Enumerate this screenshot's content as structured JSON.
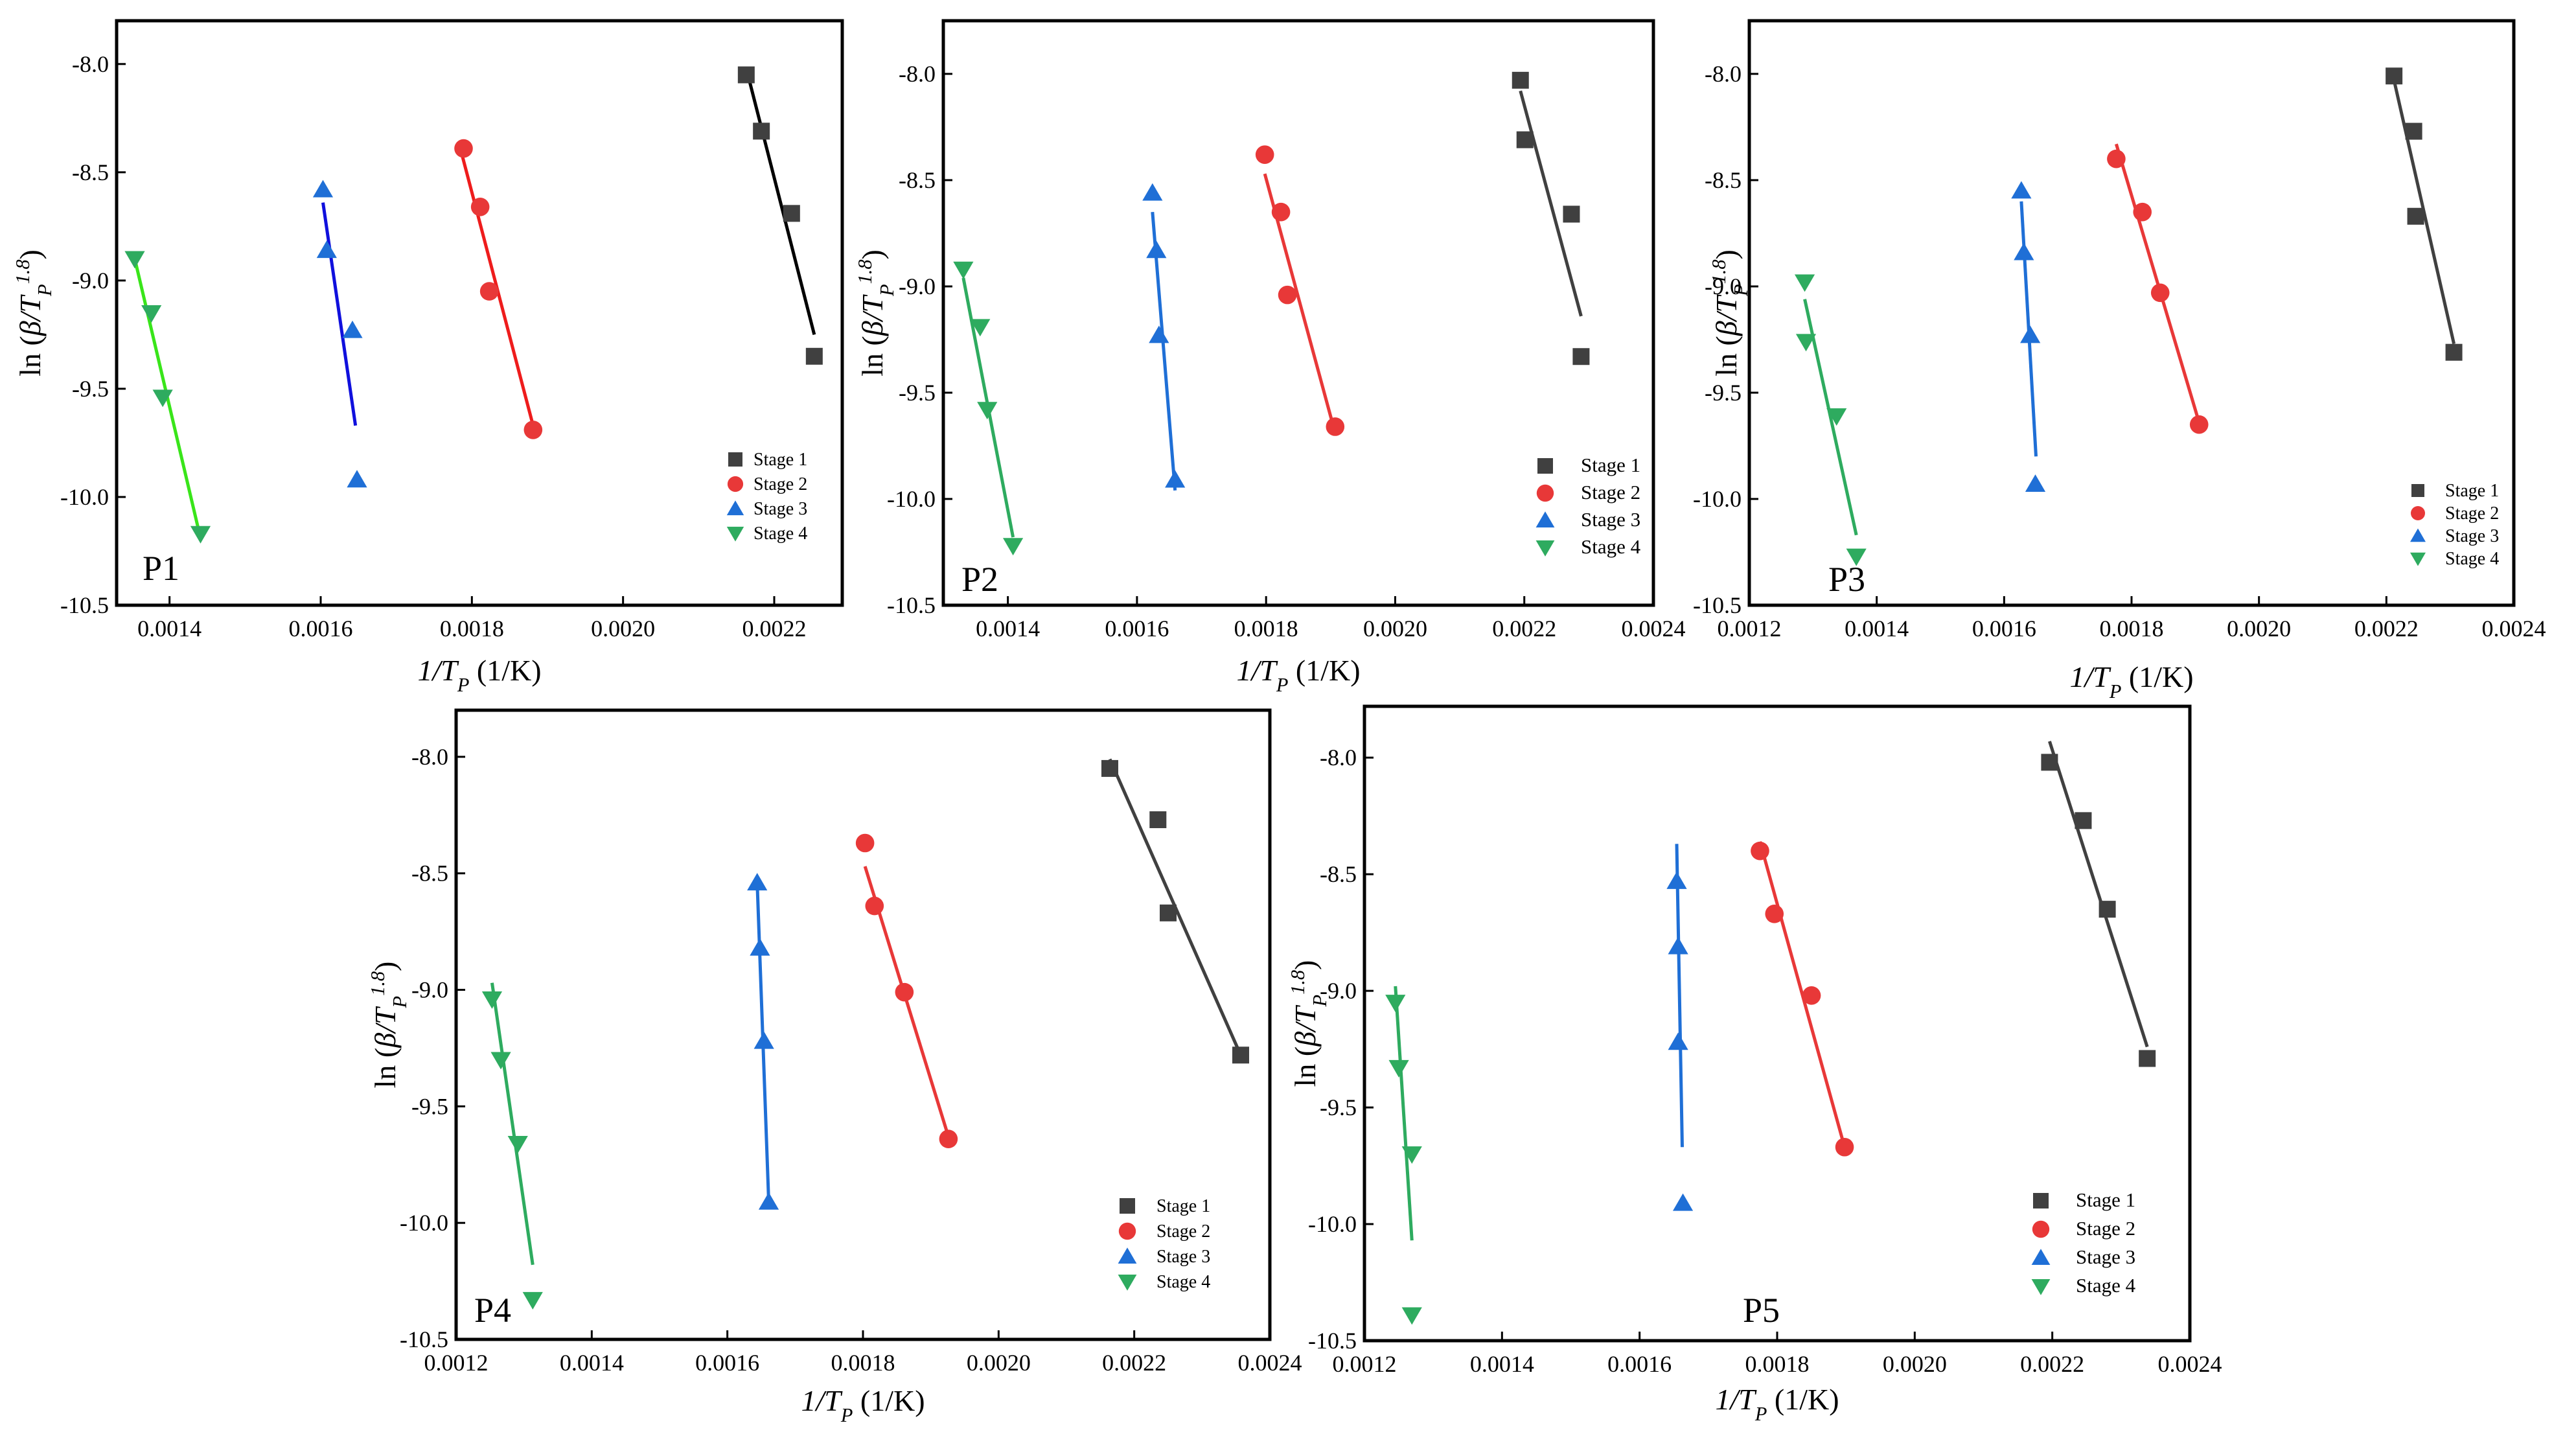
{
  "colors": {
    "Stage 1": "#404040",
    "Stage 2": "#e83838",
    "Stage 3": "#1f6fd6",
    "Stage 4": "#2eab5f"
  },
  "fit_colors": {
    "P1": {
      "Stage 1": "#000000",
      "Stage 2": "#ee1c1c",
      "Stage 3": "#1010dd",
      "Stage 4": "#39e51a"
    }
  },
  "legend_labels": [
    "Stage 1",
    "Stage 2",
    "Stage 3",
    "Stage 4"
  ],
  "chart_data": [
    {
      "type": "scatter",
      "panel": "P1",
      "xlabel": "1/T_P (1/K)",
      "ylabel": "ln (β/T_P^1.8)",
      "xlim": [
        0.00133,
        0.00229
      ],
      "ylim": [
        -10.5,
        -7.8
      ],
      "xticks": [
        0.0014,
        0.0016,
        0.0018,
        0.002,
        0.0022
      ],
      "xtick_labels": [
        "0.0014",
        "0.0016",
        "0.0018",
        "0.0020",
        "0.0022"
      ],
      "yticks": [
        -10.5,
        -10.0,
        -9.5,
        -9.0,
        -8.5,
        -8.0
      ],
      "ytick_labels": [
        "-10.5",
        "-10.0",
        "-9.5",
        "-9.0",
        "-8.5",
        "-8.0"
      ],
      "series": [
        {
          "name": "Stage 1",
          "marker": "square",
          "x": [
            0.002163,
            0.002183,
            0.002223,
            0.002253
          ],
          "y": [
            -8.05,
            -8.31,
            -8.69,
            -9.35
          ],
          "fit_x": [
            0.002163,
            0.002253
          ],
          "fit_y": [
            -8.02,
            -9.25
          ]
        },
        {
          "name": "Stage 2",
          "marker": "circle",
          "x": [
            0.001789,
            0.001811,
            0.001823,
            0.001881
          ],
          "y": [
            -8.39,
            -8.66,
            -9.05,
            -9.69
          ],
          "fit_x": [
            0.001784,
            0.001881
          ],
          "fit_y": [
            -8.38,
            -9.67
          ]
        },
        {
          "name": "Stage 3",
          "marker": "triangle-up",
          "x": [
            0.001603,
            0.001608,
            0.001642,
            0.001648
          ],
          "y": [
            -8.58,
            -8.86,
            -9.23,
            -9.92
          ],
          "fit_x": [
            0.001603,
            0.001646
          ],
          "fit_y": [
            -8.64,
            -9.67
          ]
        },
        {
          "name": "Stage 4",
          "marker": "triangle-down",
          "x": [
            0.001354,
            0.001376,
            0.001391,
            0.001441
          ],
          "y": [
            -8.9,
            -9.15,
            -9.54,
            -10.17
          ],
          "fit_x": [
            0.001354,
            0.001441
          ],
          "fit_y": [
            -8.9,
            -10.19
          ]
        }
      ]
    },
    {
      "type": "scatter",
      "panel": "P2",
      "xlabel": "1/T_P (1/K)",
      "ylabel": "ln (β/T_P^1.8)",
      "xlim": [
        0.0013,
        0.0024
      ],
      "ylim": [
        -10.5,
        -7.75
      ],
      "xticks": [
        0.0014,
        0.0016,
        0.0018,
        0.002,
        0.0022,
        0.0024
      ],
      "xtick_labels": [
        "0.0014",
        "0.0016",
        "0.0018",
        "0.0020",
        "0.0022",
        "0.0024"
      ],
      "yticks": [
        -10.5,
        -10.0,
        -9.5,
        -9.0,
        -8.5,
        -8.0
      ],
      "ytick_labels": [
        "-10.5",
        "-10.0",
        "-9.5",
        "-9.0",
        "-8.5",
        "-8.0"
      ],
      "series": [
        {
          "name": "Stage 1",
          "marker": "square",
          "x": [
            0.002194,
            0.002201,
            0.002273,
            0.002288
          ],
          "y": [
            -8.03,
            -8.31,
            -8.66,
            -9.33
          ],
          "fit_x": [
            0.002194,
            0.002288
          ],
          "fit_y": [
            -8.08,
            -9.14
          ]
        },
        {
          "name": "Stage 2",
          "marker": "circle",
          "x": [
            0.001798,
            0.001823,
            0.001833,
            0.001907
          ],
          "y": [
            -8.38,
            -8.65,
            -9.04,
            -9.66
          ],
          "fit_x": [
            0.001798,
            0.001907
          ],
          "fit_y": [
            -8.47,
            -9.69
          ]
        },
        {
          "name": "Stage 3",
          "marker": "triangle-up",
          "x": [
            0.001624,
            0.00163,
            0.001634,
            0.001659
          ],
          "y": [
            -8.56,
            -8.83,
            -9.23,
            -9.91
          ],
          "fit_x": [
            0.001624,
            0.001659
          ],
          "fit_y": [
            -8.65,
            -9.96
          ]
        },
        {
          "name": "Stage 4",
          "marker": "triangle-down",
          "x": [
            0.001331,
            0.001357,
            0.001368,
            0.001408
          ],
          "y": [
            -8.92,
            -9.19,
            -9.58,
            -10.22
          ],
          "fit_x": [
            0.001331,
            0.001408
          ],
          "fit_y": [
            -8.96,
            -10.18
          ]
        }
      ]
    },
    {
      "type": "scatter",
      "panel": "P3",
      "xlabel": "1/T_P (1/K)",
      "ylabel": "ln (β/T_P^1.8)",
      "xlim": [
        0.0012,
        0.0024
      ],
      "ylim": [
        -10.5,
        -7.75
      ],
      "xticks": [
        0.0012,
        0.0014,
        0.0016,
        0.0018,
        0.002,
        0.0022,
        0.0024
      ],
      "xtick_labels": [
        "0.0012",
        "0.0014",
        "0.0016",
        "0.0018",
        "0.0020",
        "0.0022",
        "0.0024"
      ],
      "yticks": [
        -10.5,
        -10.0,
        -9.5,
        -9.0,
        -8.5,
        -8.0
      ],
      "ytick_labels": [
        "-10.5",
        "-10.0",
        "-9.5",
        "-9.0",
        "-8.5",
        "-8.0"
      ],
      "series": [
        {
          "name": "Stage 1",
          "marker": "square",
          "x": [
            0.002212,
            0.002243,
            0.002246,
            0.002306
          ],
          "y": [
            -8.01,
            -8.27,
            -8.67,
            -9.31
          ],
          "fit_x": [
            0.002212,
            0.002306
          ],
          "fit_y": [
            -8.03,
            -9.27
          ]
        },
        {
          "name": "Stage 2",
          "marker": "circle",
          "x": [
            0.001776,
            0.001817,
            0.001845,
            0.001906
          ],
          "y": [
            -8.4,
            -8.65,
            -9.03,
            -9.65
          ],
          "fit_x": [
            0.001776,
            0.001906
          ],
          "fit_y": [
            -8.33,
            -9.64
          ]
        },
        {
          "name": "Stage 3",
          "marker": "triangle-up",
          "x": [
            0.001627,
            0.001631,
            0.001641,
            0.001649
          ],
          "y": [
            -8.55,
            -8.84,
            -9.23,
            -9.93
          ],
          "fit_x": [
            0.001627,
            0.00165
          ],
          "fit_y": [
            -8.6,
            -9.8
          ]
        },
        {
          "name": "Stage 4",
          "marker": "triangle-down",
          "x": [
            0.001287,
            0.001289,
            0.001337,
            0.001368
          ],
          "y": [
            -8.98,
            -9.26,
            -9.61,
            -10.27
          ],
          "fit_x": [
            0.001287,
            0.001368
          ],
          "fit_y": [
            -9.06,
            -10.17
          ]
        }
      ]
    },
    {
      "type": "scatter",
      "panel": "P4",
      "xlabel": "1/T_P (1/K)",
      "ylabel": "ln (β/T_P^1.8)",
      "xlim": [
        0.0012,
        0.0024
      ],
      "ylim": [
        -10.5,
        -7.8
      ],
      "xticks": [
        0.0012,
        0.0014,
        0.0016,
        0.0018,
        0.002,
        0.0022,
        0.0024
      ],
      "xtick_labels": [
        "0.0012",
        "0.0014",
        "0.0016",
        "0.0018",
        "0.0020",
        "0.0022",
        "0.0024"
      ],
      "yticks": [
        -10.5,
        -10.0,
        -9.5,
        -9.0,
        -8.5,
        -8.0
      ],
      "ytick_labels": [
        "-10.5",
        "-10.0",
        "-9.5",
        "-9.0",
        "-8.5",
        "-8.0"
      ],
      "series": [
        {
          "name": "Stage 1",
          "marker": "square",
          "x": [
            0.002164,
            0.002235,
            0.00225,
            0.002357
          ],
          "y": [
            -8.05,
            -8.27,
            -8.67,
            -9.28
          ],
          "fit_x": [
            0.002164,
            0.002357
          ],
          "fit_y": [
            -8.01,
            -9.28
          ]
        },
        {
          "name": "Stage 2",
          "marker": "circle",
          "x": [
            0.001803,
            0.001817,
            0.001861,
            0.001926
          ],
          "y": [
            -8.37,
            -8.64,
            -9.01,
            -9.64
          ],
          "fit_x": [
            0.001803,
            0.001926
          ],
          "fit_y": [
            -8.47,
            -9.63
          ]
        },
        {
          "name": "Stage 3",
          "marker": "triangle-up",
          "x": [
            0.001644,
            0.001648,
            0.001654,
            0.001661
          ],
          "y": [
            -8.54,
            -8.82,
            -9.22,
            -9.91
          ],
          "fit_x": [
            0.001644,
            0.001661
          ],
          "fit_y": [
            -8.54,
            -9.91
          ]
        },
        {
          "name": "Stage 4",
          "marker": "triangle-down",
          "x": [
            0.001253,
            0.001266,
            0.001291,
            0.001313
          ],
          "y": [
            -9.04,
            -9.3,
            -9.66,
            -10.33
          ],
          "fit_x": [
            0.001253,
            0.001313
          ],
          "fit_y": [
            -8.97,
            -10.18
          ]
        }
      ]
    },
    {
      "type": "scatter",
      "panel": "P5",
      "xlabel": "1/T_P (1/K)",
      "ylabel": "ln (β/T_P^1.8)",
      "xlim": [
        0.0012,
        0.0024
      ],
      "ylim": [
        -10.5,
        -7.78
      ],
      "xticks": [
        0.0012,
        0.0014,
        0.0016,
        0.0018,
        0.002,
        0.0022,
        0.0024
      ],
      "xtick_labels": [
        "0.0012",
        "0.0014",
        "0.0016",
        "0.0018",
        "0.0020",
        "0.0022",
        "0.0024"
      ],
      "yticks": [
        -10.5,
        -10.0,
        -9.5,
        -9.0,
        -8.5,
        -8.0
      ],
      "ytick_labels": [
        "-10.5",
        "-10.0",
        "-9.5",
        "-9.0",
        "-8.5",
        "-8.0"
      ],
      "series": [
        {
          "name": "Stage 1",
          "marker": "square",
          "x": [
            0.002196,
            0.002245,
            0.00228,
            0.002338
          ],
          "y": [
            -8.02,
            -8.27,
            -8.65,
            -9.29
          ],
          "fit_x": [
            0.002196,
            0.002338
          ],
          "fit_y": [
            -7.93,
            -9.24
          ]
        },
        {
          "name": "Stage 2",
          "marker": "circle",
          "x": [
            0.001775,
            0.001796,
            0.00185,
            0.001898
          ],
          "y": [
            -8.4,
            -8.67,
            -9.02,
            -9.67
          ],
          "fit_x": [
            0.001775,
            0.001898
          ],
          "fit_y": [
            -8.36,
            -9.67
          ]
        },
        {
          "name": "Stage 3",
          "marker": "triangle-up",
          "x": [
            0.001654,
            0.001656,
            0.001656,
            0.001663
          ],
          "y": [
            -8.53,
            -8.81,
            -9.22,
            -9.91
          ],
          "fit_x": [
            0.001654,
            0.001662
          ],
          "fit_y": [
            -8.37,
            -9.67
          ]
        },
        {
          "name": "Stage 4",
          "marker": "triangle-down",
          "x": [
            0.001245,
            0.00125,
            0.001269,
            0.001269
          ],
          "y": [
            -9.05,
            -9.33,
            -9.7,
            -10.39
          ],
          "fit_x": [
            0.001245,
            0.001269
          ],
          "fit_y": [
            -8.98,
            -10.07
          ]
        }
      ]
    }
  ]
}
